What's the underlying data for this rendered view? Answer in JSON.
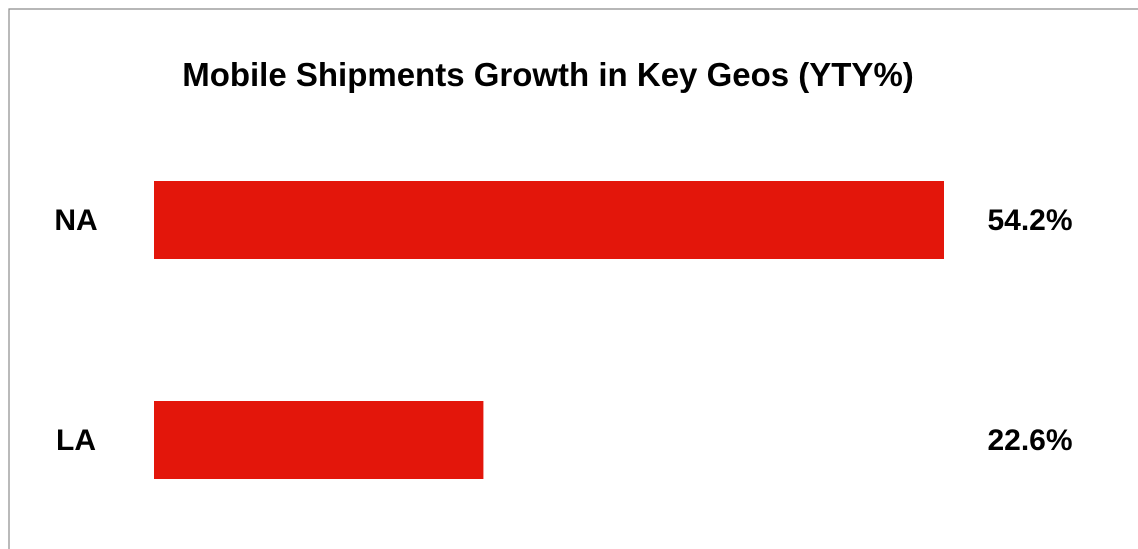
{
  "chart_data": {
    "type": "bar",
    "orientation": "horizontal",
    "title": "Mobile Shipments Growth in Key Geos (YTY%)",
    "categories": [
      "NA",
      "LA"
    ],
    "values": [
      54.2,
      22.6
    ],
    "value_labels": [
      "54.2%",
      "22.6%"
    ],
    "unit": "%",
    "xlabel": "",
    "ylabel": "",
    "xlim": [
      0,
      54.2
    ],
    "grid": false,
    "legend": "none",
    "bar_color": "#e3160b"
  }
}
